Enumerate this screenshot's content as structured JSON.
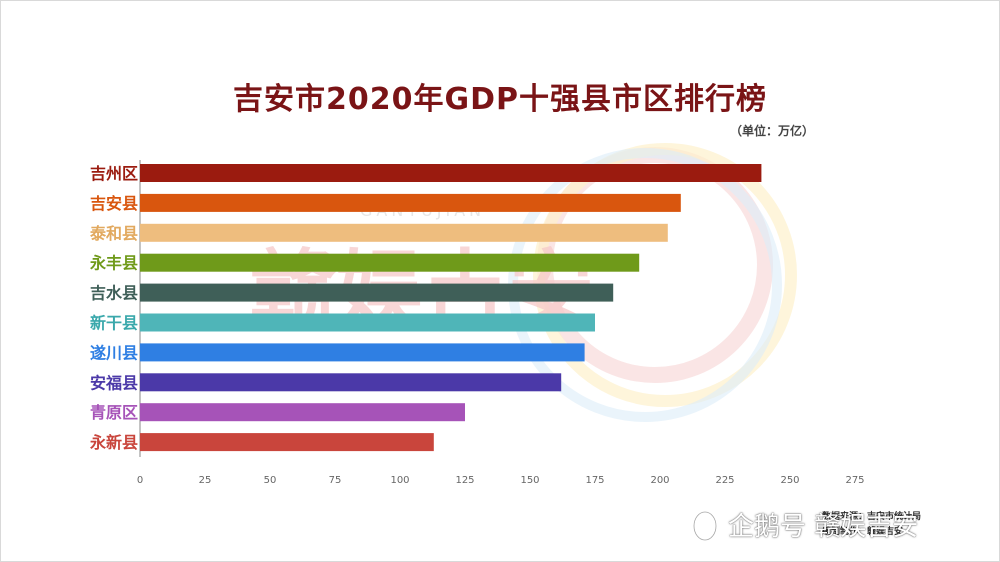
{
  "title": "吉安市2020年GDP十强县市区排行榜",
  "unit": "（单位：万亿）",
  "watermark": {
    "text": "赣娱吉安",
    "subtext": "GANYUJIAN"
  },
  "source": {
    "line1": "数据来源：吉安市统计局",
    "line2": "编制制作：赣娱吉安"
  },
  "brand": {
    "label": "企鹅号 赣娱吉安"
  },
  "chart_data": {
    "type": "bar",
    "orientation": "horizontal",
    "title": "吉安市2020年GDP十强县市区排行榜",
    "ylabel": "",
    "xlabel": "",
    "xlim": [
      0,
      275
    ],
    "xticks": [
      0,
      25,
      50,
      75,
      100,
      125,
      150,
      175,
      200,
      225,
      250,
      275
    ],
    "grid": false,
    "categories": [
      "吉州区",
      "吉安县",
      "泰和县",
      "永丰县",
      "吉水县",
      "新干县",
      "遂川县",
      "安福县",
      "青原区",
      "永新县"
    ],
    "values": [
      239,
      208,
      203,
      192,
      182,
      175,
      171,
      162,
      125,
      113
    ],
    "colors": [
      "#9b1b0f",
      "#d9560e",
      "#eebd7e",
      "#6f9a1a",
      "#3f5f58",
      "#4fb5b8",
      "#2f7fe3",
      "#4b39a8",
      "#a653b8",
      "#c9453c"
    ],
    "label_colors": [
      "#9b1b0f",
      "#d9560e",
      "#e2a95f",
      "#6f9a1a",
      "#3f5f58",
      "#3aa8ab",
      "#2f7fe3",
      "#4b39a8",
      "#a653b8",
      "#c9453c"
    ]
  }
}
